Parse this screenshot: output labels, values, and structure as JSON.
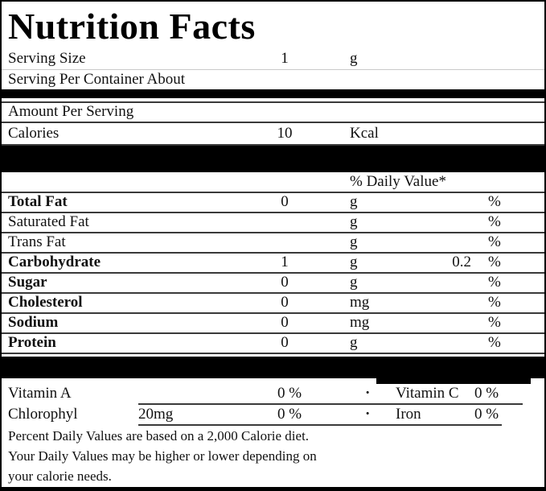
{
  "title": "Nutrition Facts",
  "serving": {
    "size_label": "Serving Size",
    "size_value": "1",
    "size_unit": "g",
    "per_container_label": "Serving Per Container About"
  },
  "amount_section": {
    "header": "Amount Per Serving",
    "calories_label": "Calories",
    "calories_value": "10",
    "calories_unit": "Kcal"
  },
  "daily_value_header": "% Daily Value*",
  "nutrients": [
    {
      "label": "Total Fat",
      "value": "0",
      "unit": "g",
      "dv": "",
      "pct": "%"
    },
    {
      "label": "Saturated Fat",
      "value": "",
      "unit": "g",
      "dv": "",
      "pct": "%"
    },
    {
      "label": "Trans Fat",
      "value": "",
      "unit": "g",
      "dv": "",
      "pct": "%"
    },
    {
      "label": "Carbohydrate",
      "value": "1",
      "unit": "g",
      "dv": "0.2",
      "pct": "%"
    },
    {
      "label": "Sugar",
      "value": "0",
      "unit": "g",
      "dv": "",
      "pct": "%"
    },
    {
      "label": "Cholesterol",
      "value": "0",
      "unit": "mg",
      "dv": "",
      "pct": "%"
    },
    {
      "label": "Sodium",
      "value": "0",
      "unit": "mg",
      "dv": "",
      "pct": "%"
    },
    {
      "label": "Protein",
      "value": "0",
      "unit": "g",
      "dv": "",
      "pct": "%"
    }
  ],
  "vitamins": [
    {
      "label": "Vitamin A",
      "amount": "",
      "pct": "0 %",
      "sep": "·",
      "label2": "Vitamin C",
      "pct2": "0 %"
    },
    {
      "label": "Chlorophyl",
      "amount": "20mg",
      "pct": "0 %",
      "sep": "·",
      "label2": "Iron",
      "pct2": "0 %"
    }
  ],
  "footnote": {
    "line1": "Percent Daily Values are based on a 2,000 Calorie diet.",
    "line2": "Your Daily Values may be higher or lower depending on",
    "line3": "your calorie needs."
  },
  "colors": {
    "bar": "#000000",
    "rule": "#3a3a3a",
    "text": "#111111",
    "background": "#ffffff"
  }
}
